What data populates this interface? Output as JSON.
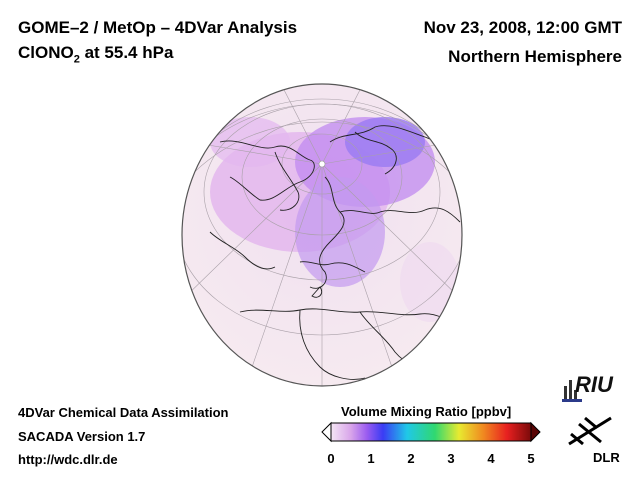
{
  "header": {
    "title_line1": "GOME–2 / MetOp – 4DVar Analysis",
    "species_prefix": "ClONO",
    "species_subscript": "2",
    "species_suffix": " at 55.4 hPa",
    "date": "Nov 23, 2008, 12:00 GMT",
    "region": "Northern Hemisphere"
  },
  "footer": {
    "line1": "4DVar Chemical Data Assimilation",
    "line2": "SACADA Version 1.7",
    "line3": "http://wdc.dlr.de"
  },
  "colorbar": {
    "title": "Volume Mixing Ratio [ppbv]",
    "ticks": [
      "0",
      "1",
      "2",
      "3",
      "4",
      "5"
    ],
    "colors": [
      "#f4e6f4",
      "#d8a4ea",
      "#9a5cf0",
      "#3a3cf4",
      "#20c8e8",
      "#30d870",
      "#e8ea30",
      "#f08a20",
      "#e82020",
      "#7a0a0a"
    ]
  },
  "logos": {
    "riu": "RIU",
    "dlr": "DLR"
  }
}
